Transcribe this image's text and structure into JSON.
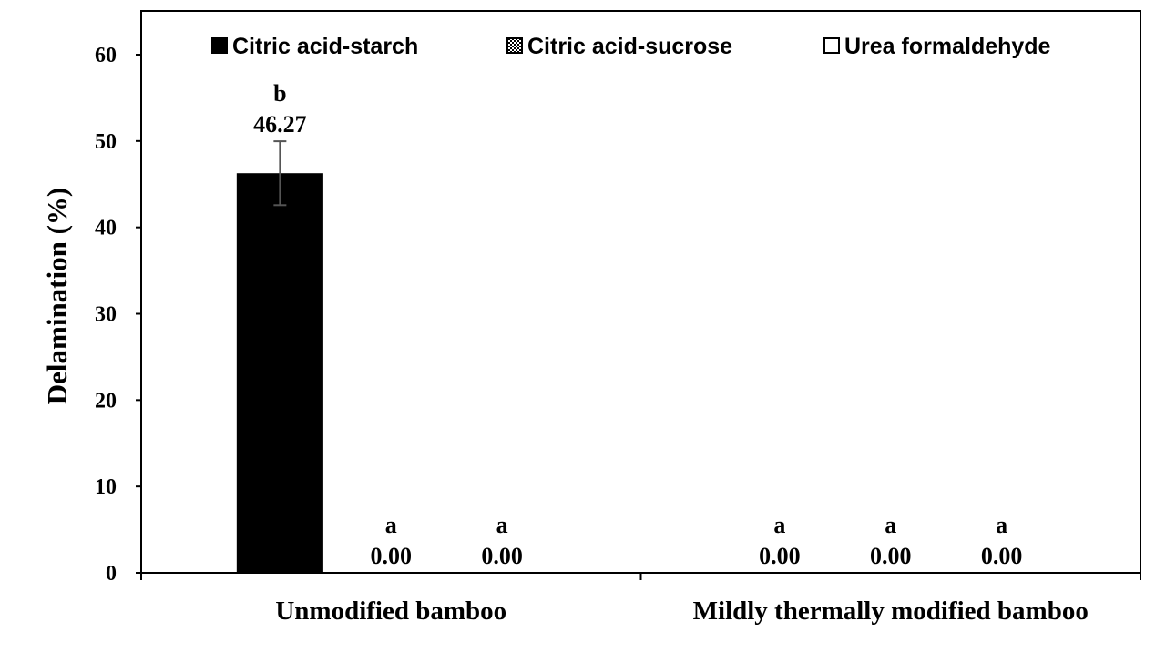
{
  "chart_data": {
    "type": "bar",
    "title": "",
    "xlabel": "",
    "ylabel": "Delamination (%)",
    "ylim": [
      0,
      60
    ],
    "yticks": [
      0,
      10,
      20,
      30,
      40,
      50,
      60
    ],
    "categories": [
      "Unmodified bamboo",
      "Mildly thermally modified bamboo"
    ],
    "grid": false,
    "legend_position": "top",
    "series": [
      {
        "name": "Citric acid-starch",
        "fill": "solid",
        "color": "#000000",
        "values": [
          46.27,
          0.0
        ],
        "value_labels": [
          "46.27",
          "0.00"
        ],
        "error": [
          3.7,
          0
        ],
        "significance": [
          "b",
          "a"
        ]
      },
      {
        "name": "Citric acid-sucrose",
        "fill": "checkered",
        "color": "#000000",
        "values": [
          0.0,
          0.0
        ],
        "value_labels": [
          "0.00",
          "0.00"
        ],
        "error": [
          0,
          0
        ],
        "significance": [
          "a",
          "a"
        ]
      },
      {
        "name": "Urea formaldehyde",
        "fill": "hollow",
        "color": "#000000",
        "values": [
          0.0,
          0.0
        ],
        "value_labels": [
          "0.00",
          "0.00"
        ],
        "error": [
          0,
          0
        ],
        "significance": [
          "a",
          "a"
        ]
      }
    ]
  }
}
